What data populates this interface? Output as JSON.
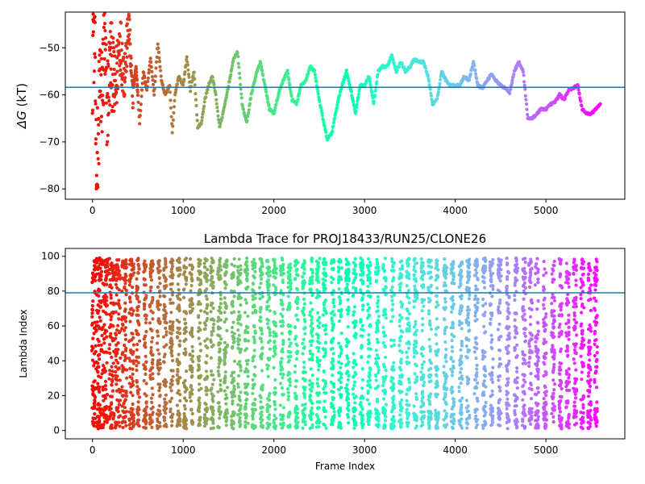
{
  "chart_data": [
    {
      "type": "scatter",
      "title": "",
      "xlabel": "",
      "ylabel": "ΔG (kT)",
      "ylabel_symbol": "ΔG",
      "ylabel_unit": " (kT)",
      "xlim": [
        -300,
        5870
      ],
      "ylim": [
        -82.2,
        -42.4
      ],
      "xticks": [
        0,
        1000,
        2000,
        3000,
        4000,
        5000
      ],
      "yticks": [
        -80,
        -70,
        -60,
        -50
      ],
      "hline": -58.4,
      "hline_color": "#1f77b4",
      "colormap": "rainbow (red at frame 0 → violet at frame 5600)",
      "grid": false,
      "x_max": 5600,
      "trace_anchors": [
        [
          0,
          -50
        ],
        [
          20,
          -43
        ],
        [
          40,
          -70
        ],
        [
          60,
          -77
        ],
        [
          80,
          -55
        ],
        [
          100,
          -62
        ],
        [
          130,
          -49
        ],
        [
          160,
          -63
        ],
        [
          200,
          -52
        ],
        [
          250,
          -60
        ],
        [
          300,
          -48
        ],
        [
          350,
          -56
        ],
        [
          400,
          -45
        ],
        [
          440,
          -60
        ],
        [
          480,
          -54
        ],
        [
          520,
          -66
        ],
        [
          560,
          -55
        ],
        [
          600,
          -59
        ],
        [
          640,
          -52
        ],
        [
          680,
          -60
        ],
        [
          720,
          -49
        ],
        [
          760,
          -57
        ],
        [
          800,
          -60
        ],
        [
          850,
          -58
        ],
        [
          880,
          -68
        ],
        [
          910,
          -60
        ],
        [
          950,
          -56
        ],
        [
          1000,
          -58
        ],
        [
          1040,
          -52
        ],
        [
          1080,
          -59
        ],
        [
          1120,
          -55
        ],
        [
          1160,
          -67
        ],
        [
          1200,
          -66
        ],
        [
          1240,
          -61
        ],
        [
          1280,
          -58
        ],
        [
          1320,
          -56
        ],
        [
          1360,
          -60
        ],
        [
          1400,
          -67
        ],
        [
          1450,
          -63
        ],
        [
          1500,
          -58
        ],
        [
          1560,
          -52
        ],
        [
          1600,
          -51
        ],
        [
          1650,
          -62
        ],
        [
          1700,
          -66
        ],
        [
          1750,
          -60
        ],
        [
          1800,
          -56
        ],
        [
          1850,
          -53
        ],
        [
          1900,
          -58
        ],
        [
          1950,
          -63
        ],
        [
          2000,
          -64
        ],
        [
          2050,
          -60
        ],
        [
          2100,
          -57
        ],
        [
          2150,
          -55
        ],
        [
          2200,
          -61
        ],
        [
          2250,
          -62
        ],
        [
          2300,
          -58
        ],
        [
          2350,
          -57
        ],
        [
          2400,
          -54
        ],
        [
          2450,
          -55
        ],
        [
          2500,
          -61
        ],
        [
          2550,
          -66
        ],
        [
          2590,
          -69.5
        ],
        [
          2640,
          -68
        ],
        [
          2700,
          -62
        ],
        [
          2750,
          -58
        ],
        [
          2800,
          -55
        ],
        [
          2850,
          -59
        ],
        [
          2900,
          -64
        ],
        [
          2950,
          -58
        ],
        [
          3000,
          -58
        ],
        [
          3050,
          -56
        ],
        [
          3100,
          -62
        ],
        [
          3150,
          -55
        ],
        [
          3200,
          -54
        ],
        [
          3250,
          -54
        ],
        [
          3300,
          -51.5
        ],
        [
          3350,
          -55
        ],
        [
          3400,
          -53
        ],
        [
          3450,
          -55
        ],
        [
          3500,
          -54
        ],
        [
          3550,
          -52.5
        ],
        [
          3600,
          -53
        ],
        [
          3650,
          -53
        ],
        [
          3700,
          -56
        ],
        [
          3750,
          -62
        ],
        [
          3800,
          -61
        ],
        [
          3850,
          -55
        ],
        [
          3900,
          -57
        ],
        [
          3950,
          -58
        ],
        [
          4000,
          -58
        ],
        [
          4050,
          -58
        ],
        [
          4100,
          -56
        ],
        [
          4150,
          -57
        ],
        [
          4200,
          -53
        ],
        [
          4250,
          -58
        ],
        [
          4300,
          -58.5
        ],
        [
          4350,
          -57
        ],
        [
          4400,
          -55.5
        ],
        [
          4450,
          -57
        ],
        [
          4500,
          -58
        ],
        [
          4550,
          -58.5
        ],
        [
          4600,
          -59.5
        ],
        [
          4650,
          -55
        ],
        [
          4700,
          -53
        ],
        [
          4750,
          -55
        ],
        [
          4800,
          -65
        ],
        [
          4850,
          -65
        ],
        [
          4900,
          -64
        ],
        [
          4950,
          -63
        ],
        [
          5000,
          -63
        ],
        [
          5050,
          -62
        ],
        [
          5100,
          -61.5
        ],
        [
          5150,
          -60
        ],
        [
          5200,
          -61
        ],
        [
          5250,
          -59
        ],
        [
          5300,
          -58.5
        ],
        [
          5350,
          -58
        ],
        [
          5400,
          -63
        ],
        [
          5450,
          -64
        ],
        [
          5500,
          -64
        ],
        [
          5550,
          -63
        ],
        [
          5600,
          -62
        ]
      ]
    },
    {
      "type": "scatter",
      "title": "Lambda Trace for PROJ18433/RUN25/CLONE26",
      "xlabel": "Frame Index",
      "ylabel": "Lambda Index",
      "xlim": [
        -300,
        5870
      ],
      "ylim": [
        -4.8,
        104.5
      ],
      "xticks": [
        0,
        1000,
        2000,
        3000,
        4000,
        5000
      ],
      "yticks": [
        0,
        20,
        40,
        60,
        80,
        100
      ],
      "hline": 79,
      "hline_color": "#1f77b4",
      "colormap": "rainbow (red at frame 0 → violet at frame 5600)",
      "grid": false,
      "x_max": 5600,
      "value_range": [
        1,
        99
      ],
      "column_centers": [
        20,
        80,
        140,
        210,
        280,
        350,
        430,
        500,
        580,
        650,
        730,
        800,
        870,
        950,
        1020,
        1090,
        1180,
        1250,
        1320,
        1400,
        1470,
        1550,
        1620,
        1700,
        1780,
        1860,
        1940,
        2010,
        2090,
        2170,
        2250,
        2330,
        2410,
        2490,
        2560,
        2650,
        2730,
        2810,
        2890,
        2970,
        3050,
        3140,
        3220,
        3310,
        3400,
        3480,
        3560,
        3640,
        3720,
        3800,
        3890,
        3970,
        4060,
        4140,
        4230,
        4320,
        4400,
        4490,
        4580,
        4670,
        4760,
        4830,
        4900,
        4990,
        5080,
        5160,
        5240,
        5320,
        5400,
        5480,
        5550
      ]
    }
  ]
}
